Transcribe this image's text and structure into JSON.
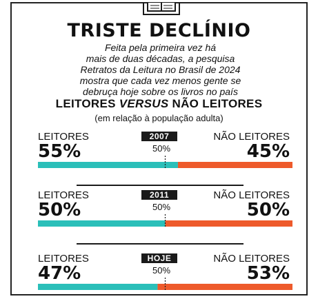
{
  "header": {
    "title": "TRISTE DECLÍNIO",
    "subtitle_lines": [
      "Feita pela primeira vez há",
      "mais de duas décadas, a pesquisa",
      "Retratos da Leitura no Brasil de 2024",
      "mostra que cada vez menos gente se",
      "debruça hoje sobre os livros no país"
    ]
  },
  "section": {
    "heading_part1": "LEITORES",
    "heading_versus": "VERSUS",
    "heading_part2": "NÃO LEITORES",
    "note": "(em relação à população adulta)"
  },
  "colors": {
    "readers": "#2bbfb9",
    "non_readers": "#ee5a2b",
    "reference_line": "#1a1a1a"
  },
  "icons": {
    "header": "book-icon"
  },
  "chart_data": {
    "type": "bar",
    "stacked": true,
    "orientation": "horizontal",
    "xlim": [
      0,
      100
    ],
    "reference_line_label": "50%",
    "categories": [
      "2007",
      "2011",
      "HOJE"
    ],
    "series": [
      {
        "name": "LEITORES",
        "values": [
          55,
          50,
          47
        ],
        "labels": [
          "55%",
          "50%",
          "47%"
        ]
      },
      {
        "name": "NÃO LEITORES",
        "values": [
          45,
          50,
          53
        ],
        "labels": [
          "45%",
          "50%",
          "53%"
        ]
      }
    ]
  }
}
